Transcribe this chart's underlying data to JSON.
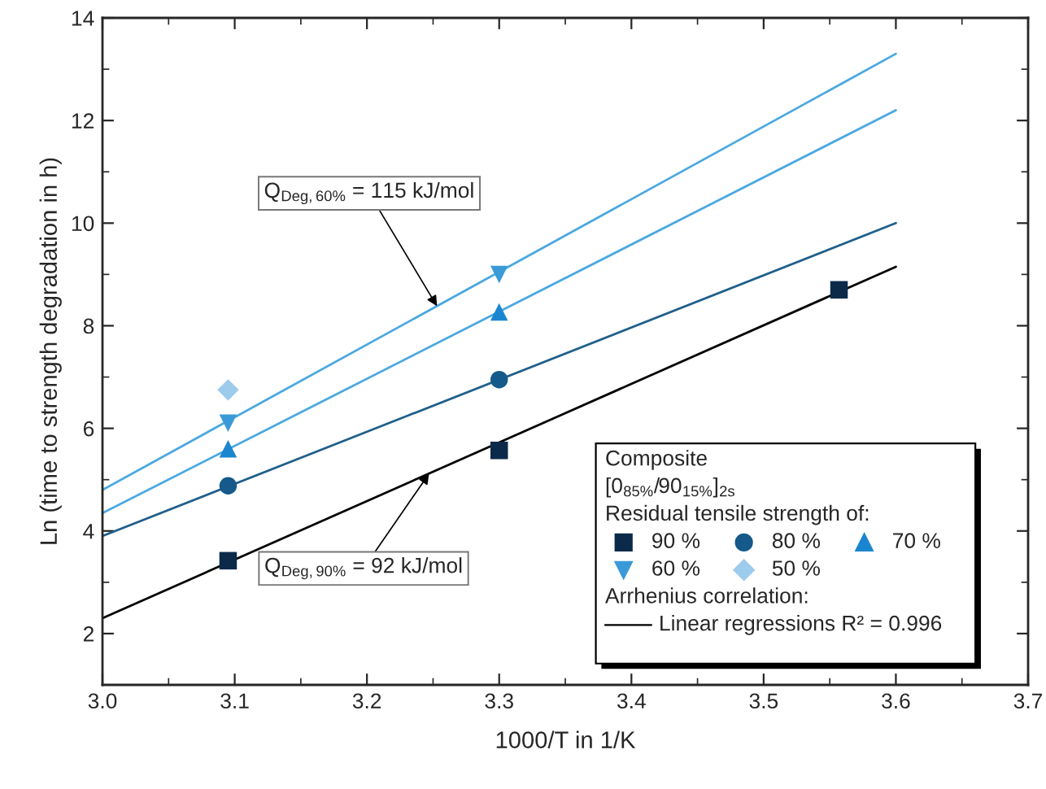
{
  "chart_data": {
    "type": "scatter",
    "xlabel": "1000/T in 1/K",
    "ylabel": "Ln (time to strength degradation in h)",
    "xlim": [
      3.0,
      3.7
    ],
    "xticks": [
      {
        "value": 3.0,
        "label": "3.0"
      },
      3.1,
      3.2,
      3.3,
      3.4,
      3.5,
      3.6,
      3.7
    ],
    "ylim": [
      1,
      14
    ],
    "yticks": [
      2,
      4,
      6,
      8,
      10,
      12,
      14
    ],
    "grid": false,
    "legend": "bottom right",
    "legend_title": "Composite\n[0$_{85%}$/90$_{15%}$]$_{2s}$",
    "series": [
      {
        "type": "line",
        "color": "#000000",
        "x": [
          3.0,
          3.6
        ],
        "values": [
          2.3,
          9.15
        ],
        "name": "Linear regressions R² = 0.996",
        "marker": "none"
      },
      {
        "type": "line",
        "color": "#1f5f8b",
        "x": [
          3.0,
          3.6
        ],
        "values": [
          3.9,
          10.0
        ],
        "marker": "none"
      },
      {
        "type": "line",
        "color": "#4aa8e0",
        "x": [
          3.0,
          3.6
        ],
        "values": [
          4.35,
          12.2
        ],
        "marker": "none"
      },
      {
        "type": "line",
        "color": "#4aa8e0",
        "x": [
          3.0,
          3.6
        ],
        "values": [
          4.8,
          13.3
        ],
        "marker": "none"
      },
      {
        "name": "90 %",
        "color": "#0b2a4a",
        "marker": "square",
        "x": [
          3.095,
          3.3,
          3.557
        ],
        "values": [
          3.42,
          5.57,
          8.7
        ]
      },
      {
        "name": "80 %",
        "color": "#155a8a",
        "marker": "circle",
        "x": [
          3.095,
          3.3
        ],
        "values": [
          4.88,
          6.95
        ]
      },
      {
        "name": "70 %",
        "color": "#1a86d0",
        "marker": "triangle",
        "x": [
          3.095,
          3.3
        ],
        "values": [
          5.6,
          8.27
        ]
      },
      {
        "name": "60 %",
        "color": "#3a9ad8",
        "marker": "triangle_down",
        "x": [
          3.095,
          3.3
        ],
        "values": [
          6.1,
          9.0
        ]
      },
      {
        "name": "50 %",
        "color": "#9dcbec",
        "marker": "diamond",
        "x": [
          3.095
        ],
        "values": [
          6.75
        ]
      }
    ],
    "annotations": [
      "Residual tensile strength of:",
      "Arrhenius correlation:",
      {
        "text": "Q$_{Deg,60%}$ = 115 kJ/mol",
        "x": 3.253,
        "y": 8.38
      },
      {
        "text": "Q$_{Deg,90%}$ = 92 kJ/mol",
        "x": 3.247,
        "y": 5.12
      }
    ]
  }
}
